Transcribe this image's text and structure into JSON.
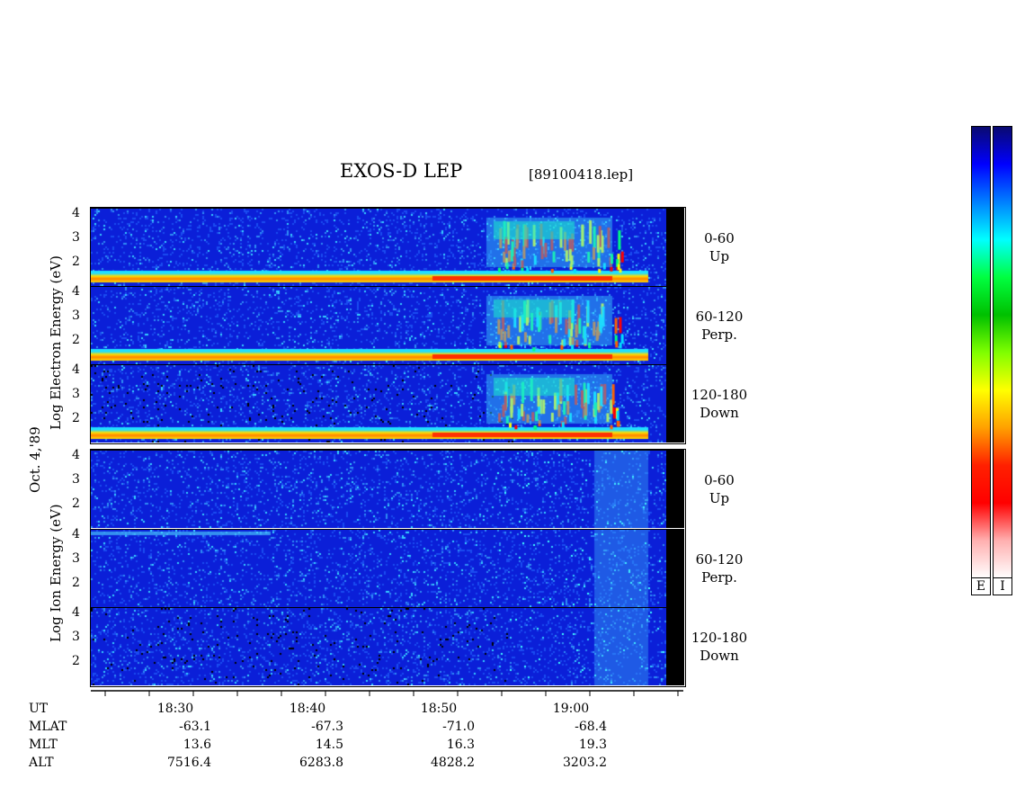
{
  "header": {
    "title": "EXOS-D LEP",
    "filename": "[89100418.lep]"
  },
  "side_labels": {
    "date": "Oct. 4,'89",
    "electron": "Log  Electron  Energy (eV)",
    "ion": "Log   Ion  Energy (eV)"
  },
  "panels": [
    {
      "label_top": "0-60",
      "label_bottom": "Up"
    },
    {
      "label_top": "60-120",
      "label_bottom": "Perp."
    },
    {
      "label_top": "120-180",
      "label_bottom": "Down"
    },
    {
      "label_top": "0-60",
      "label_bottom": "Up"
    },
    {
      "label_top": "60-120",
      "label_bottom": "Perp."
    },
    {
      "label_top": "120-180",
      "label_bottom": "Down"
    }
  ],
  "colorbar": {
    "labels": [
      "E",
      "I"
    ],
    "colors": [
      "#0a0a70",
      "#0000ff",
      "#0080ff",
      "#00ffff",
      "#00ff40",
      "#00c000",
      "#80ff00",
      "#ffff00",
      "#ffa000",
      "#ff2000",
      "#ff0000",
      "#ffb0b0",
      "#ffffff"
    ]
  },
  "chart_data": {
    "type": "heatmap",
    "title": "EXOS-D LEP",
    "ylabel": "Log Energy (eV)",
    "yticks": [
      "4",
      "3",
      "2"
    ],
    "y_range": [
      1,
      4
    ],
    "x_ticks": [
      "18:30",
      "18:40",
      "18:50",
      "19:00"
    ],
    "orbit_table": {
      "row_labels": [
        "UT",
        "MLAT",
        "MLT",
        "ALT"
      ],
      "columns": [
        {
          "UT": "18:30",
          "MLAT": "-63.1",
          "MLT": "13.6",
          "ALT": "7516.4"
        },
        {
          "UT": "18:40",
          "MLAT": "-67.3",
          "MLT": "14.5",
          "ALT": "6283.8"
        },
        {
          "UT": "18:50",
          "MLAT": "-71.0",
          "MLT": "16.3",
          "ALT": "4828.2"
        },
        {
          "UT": "19:00",
          "MLAT": "-68.4",
          "MLT": "19.3",
          "ALT": "3203.2"
        }
      ]
    },
    "panels": [
      {
        "species": "Electron",
        "pitch_angle": "0-60",
        "direction": "Up"
      },
      {
        "species": "Electron",
        "pitch_angle": "60-120",
        "direction": "Perp."
      },
      {
        "species": "Electron",
        "pitch_angle": "120-180",
        "direction": "Down"
      },
      {
        "species": "Ion",
        "pitch_angle": "0-60",
        "direction": "Up"
      },
      {
        "species": "Ion",
        "pitch_angle": "60-120",
        "direction": "Perp."
      },
      {
        "species": "Ion",
        "pitch_angle": "120-180",
        "direction": "Down"
      }
    ]
  }
}
